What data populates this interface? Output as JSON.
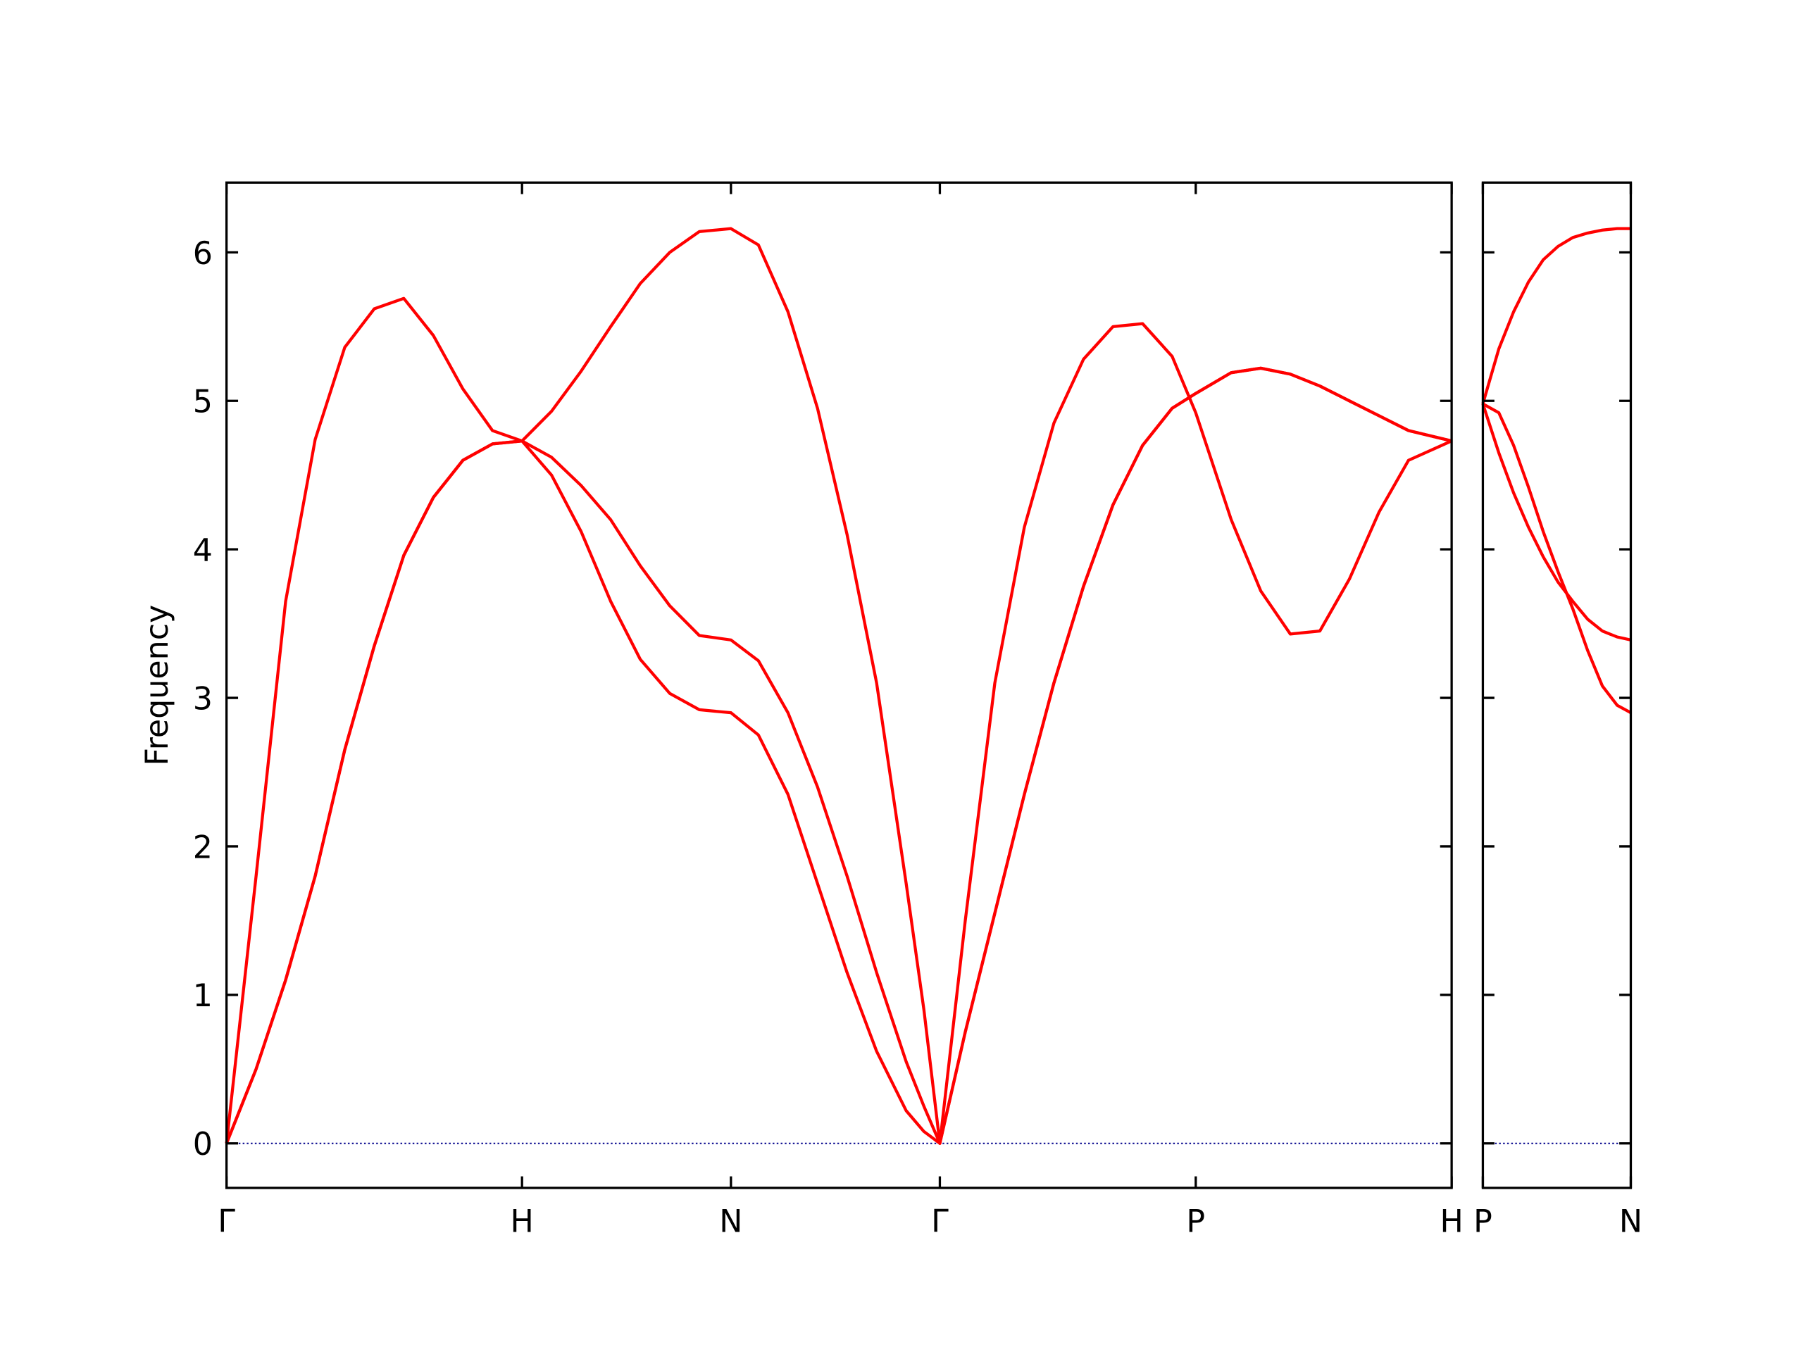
{
  "chart_data": [
    {
      "type": "line",
      "ylabel": "Frequency",
      "x": [
        0,
        0.1,
        0.2,
        0.3,
        0.4,
        0.5,
        0.6,
        0.7,
        0.8,
        0.9,
        1.0,
        1.1,
        1.2,
        1.3,
        1.4,
        1.5,
        1.6,
        1.707,
        1.8,
        1.9,
        2.0,
        2.1,
        2.2,
        2.3,
        2.36,
        2.414,
        2.5,
        2.6,
        2.7,
        2.8,
        2.9,
        3.0,
        3.1,
        3.2,
        3.28,
        3.4,
        3.5,
        3.6,
        3.7,
        3.8,
        3.9,
        4.0,
        4.146
      ],
      "series": [
        {
          "color": "#ff0000",
          "values": [
            0,
            0.5,
            1.1,
            1.8,
            2.65,
            3.35,
            3.96,
            4.35,
            4.6,
            4.71,
            4.73,
            4.5,
            4.12,
            3.65,
            3.26,
            3.03,
            2.92,
            2.9,
            2.75,
            2.35,
            1.75,
            1.15,
            0.62,
            0.22,
            0.08,
            0,
            0.75,
            1.55,
            2.35,
            3.1,
            3.75,
            4.3,
            4.7,
            4.95,
            5.05,
            5.19,
            5.22,
            5.18,
            5.1,
            5.0,
            4.9,
            4.8,
            4.73
          ]
        },
        {
          "color": "#ff0000",
          "values": [
            0,
            0.5,
            1.1,
            1.8,
            2.65,
            3.35,
            3.96,
            4.35,
            4.6,
            4.71,
            4.73,
            4.62,
            4.43,
            4.2,
            3.89,
            3.62,
            3.42,
            3.39,
            3.25,
            2.9,
            2.4,
            1.8,
            1.15,
            0.55,
            0.25,
            0,
            0.75,
            1.55,
            2.35,
            3.1,
            3.75,
            4.3,
            4.7,
            4.95,
            5.05,
            5.19,
            5.22,
            5.18,
            5.1,
            5.0,
            4.9,
            4.8,
            4.73
          ]
        },
        {
          "color": "#ff0000",
          "values": [
            0,
            1.8,
            3.65,
            4.74,
            5.36,
            5.62,
            5.69,
            5.44,
            5.08,
            4.8,
            4.73,
            4.93,
            5.2,
            5.5,
            5.79,
            6.0,
            6.14,
            6.16,
            6.05,
            5.6,
            4.95,
            4.1,
            3.1,
            1.75,
            0.9,
            0,
            1.5,
            3.1,
            4.15,
            4.85,
            5.28,
            5.5,
            5.52,
            5.3,
            4.92,
            4.2,
            3.72,
            3.43,
            3.45,
            3.8,
            4.25,
            4.6,
            4.73
          ]
        }
      ],
      "hline": 0,
      "hline_color": "#00008b",
      "xlim": [
        0,
        4.146
      ],
      "xticks": [
        {
          "value": 0,
          "label": "Γ"
        },
        {
          "value": 1.0,
          "label": "H"
        },
        {
          "value": 1.707,
          "label": "N"
        },
        {
          "value": 2.414,
          "label": "Γ"
        },
        {
          "value": 3.28,
          "label": "P"
        },
        {
          "value": 4.146,
          "label": "H"
        }
      ],
      "ylim": [
        -0.3,
        6.47
      ],
      "yticks": [
        0,
        1,
        2,
        3,
        4,
        5,
        6
      ]
    },
    {
      "type": "line",
      "x": [
        4.146,
        4.2,
        4.25,
        4.3,
        4.35,
        4.4,
        4.45,
        4.5,
        4.55,
        4.6,
        4.646
      ],
      "series": [
        {
          "color": "#ff0000",
          "values": [
            4.98,
            4.92,
            4.7,
            4.42,
            4.12,
            3.85,
            3.6,
            3.32,
            3.08,
            2.95,
            2.9
          ]
        },
        {
          "color": "#ff0000",
          "values": [
            4.98,
            4.65,
            4.38,
            4.15,
            3.95,
            3.78,
            3.65,
            3.53,
            3.45,
            3.41,
            3.39
          ]
        },
        {
          "color": "#ff0000",
          "values": [
            4.98,
            5.35,
            5.6,
            5.8,
            5.95,
            6.04,
            6.1,
            6.13,
            6.15,
            6.16,
            6.16
          ]
        }
      ],
      "hline": 0,
      "hline_color": "#00008b",
      "xlim": [
        4.146,
        4.646
      ],
      "xticks": [
        {
          "value": 4.146,
          "label": "P"
        },
        {
          "value": 4.646,
          "label": "N"
        }
      ],
      "ylim": [
        -0.3,
        6.47
      ],
      "yticks": [
        0,
        1,
        2,
        3,
        4,
        5,
        6
      ]
    }
  ]
}
